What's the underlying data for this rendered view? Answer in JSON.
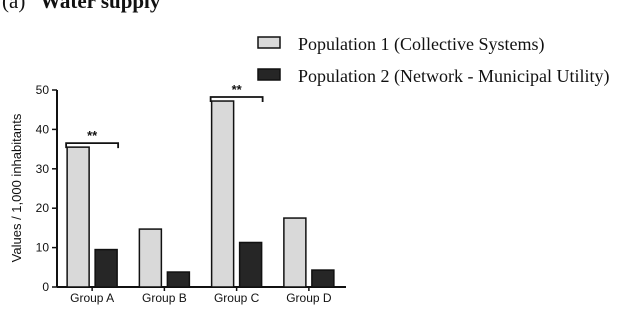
{
  "panel_label": "(a)",
  "panel_title": "Water supply",
  "chart_data": {
    "type": "bar",
    "categories": [
      "Group A",
      "Group B",
      "Group C",
      "Group D"
    ],
    "series": [
      {
        "name": "Population 1 (Collective Systems)",
        "values": [
          35.5,
          14.7,
          47.2,
          17.5
        ],
        "color": "#d9d9d9"
      },
      {
        "name": "Population 2 (Network - Municipal Utility)",
        "values": [
          9.5,
          3.8,
          11.3,
          4.3
        ],
        "color": "#262626"
      }
    ],
    "ylabel": "Values / 1,000 inhabitants",
    "ylim": [
      0,
      50
    ],
    "yticks": [
      "0",
      "10",
      "20",
      "30",
      "40",
      "50"
    ],
    "legend_position": "top-right",
    "grid": false,
    "annotations": [
      {
        "text": "**",
        "from": "Group A",
        "to": "Group A"
      },
      {
        "text": "**",
        "from": "Group C",
        "to": "Group C"
      }
    ]
  }
}
